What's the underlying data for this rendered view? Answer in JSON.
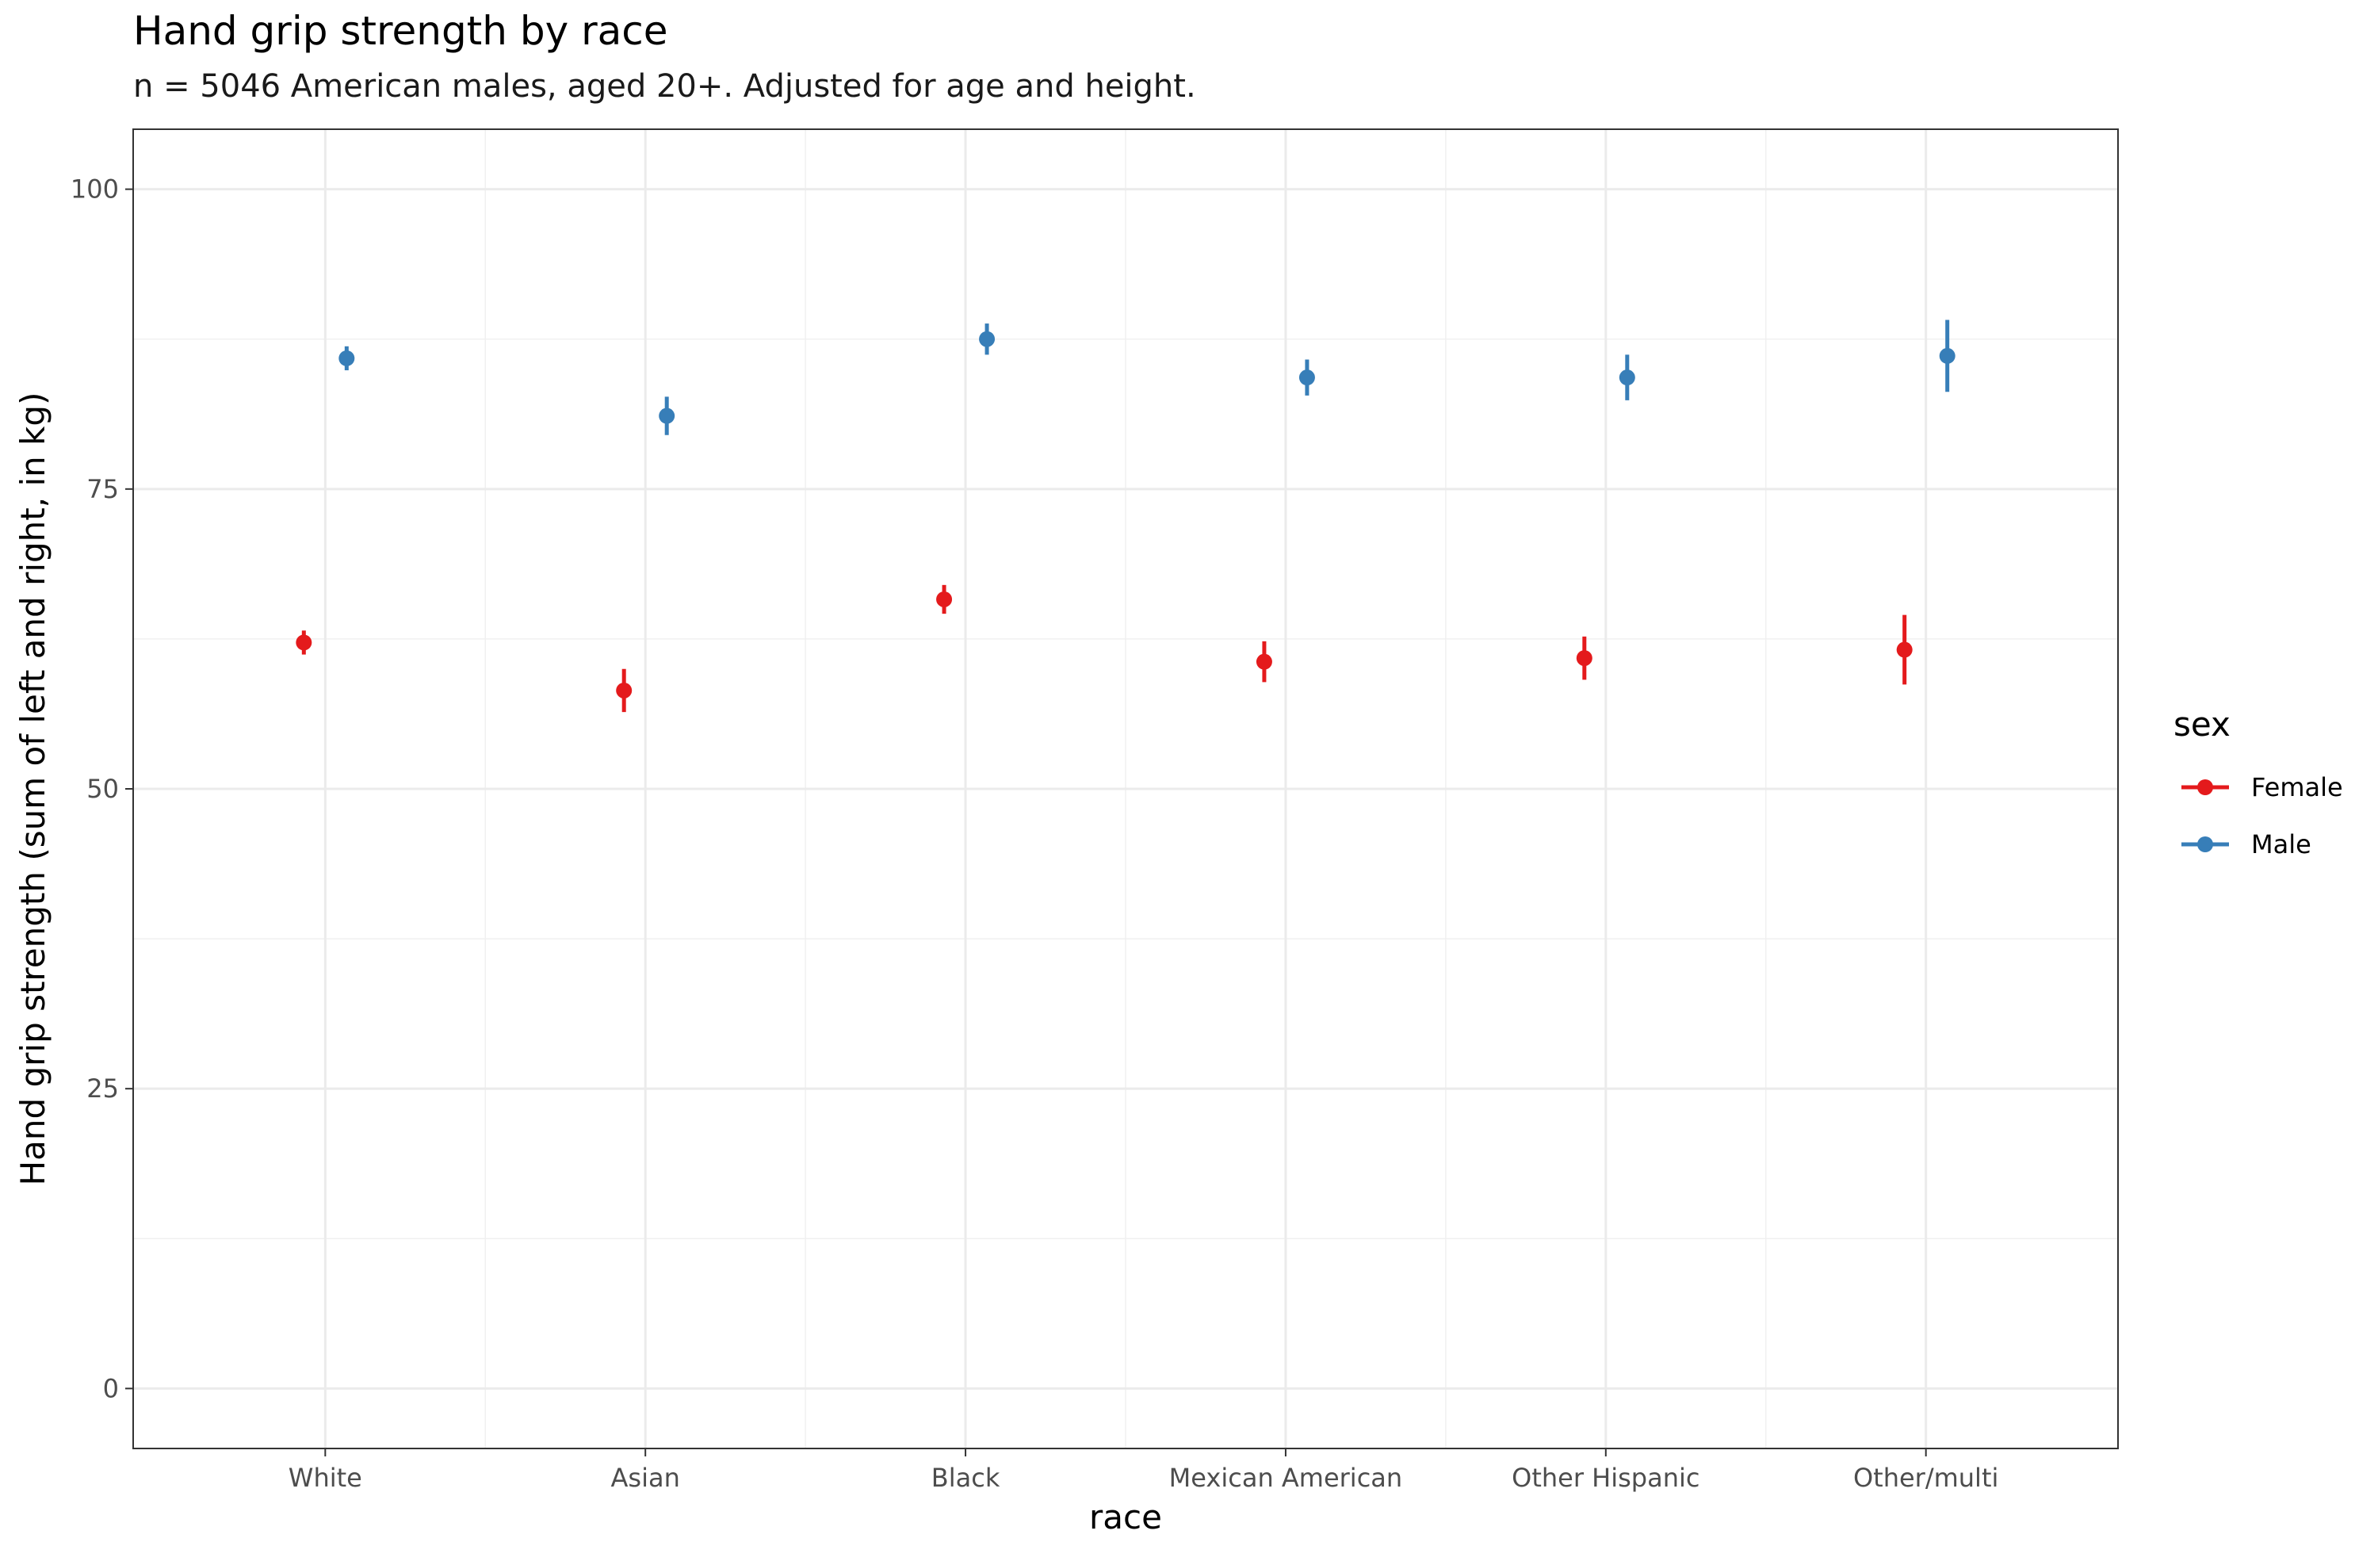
{
  "chart_data": {
    "type": "scatter",
    "title": "Hand grip strength by race",
    "subtitle": "n = 5046 American males, aged 20+. Adjusted for age and height.",
    "xlabel": "race",
    "ylabel": "Hand grip strength (sum of left and right, in kg)",
    "categories": [
      "White",
      "Asian",
      "Black",
      "Mexican American",
      "Other Hispanic",
      "Other/multi"
    ],
    "ylim": [
      -5,
      105
    ],
    "yticks": [
      0,
      25,
      50,
      75,
      100
    ],
    "grid": true,
    "legend": {
      "title": "sex",
      "position": "right"
    },
    "series": [
      {
        "name": "Female",
        "color": "#e41a1c",
        "values": [
          62.2,
          58.2,
          65.8,
          60.6,
          60.9,
          61.6
        ],
        "lower": [
          61.2,
          56.4,
          64.6,
          58.9,
          59.1,
          58.7
        ],
        "upper": [
          63.2,
          60.0,
          67.0,
          62.3,
          62.7,
          64.5
        ]
      },
      {
        "name": "Male",
        "color": "#377eb8",
        "values": [
          85.9,
          81.1,
          87.5,
          84.3,
          84.3,
          86.1
        ],
        "lower": [
          84.9,
          79.5,
          86.2,
          82.8,
          82.4,
          83.1
        ],
        "upper": [
          86.9,
          82.7,
          88.8,
          85.8,
          86.2,
          89.1
        ]
      }
    ]
  }
}
